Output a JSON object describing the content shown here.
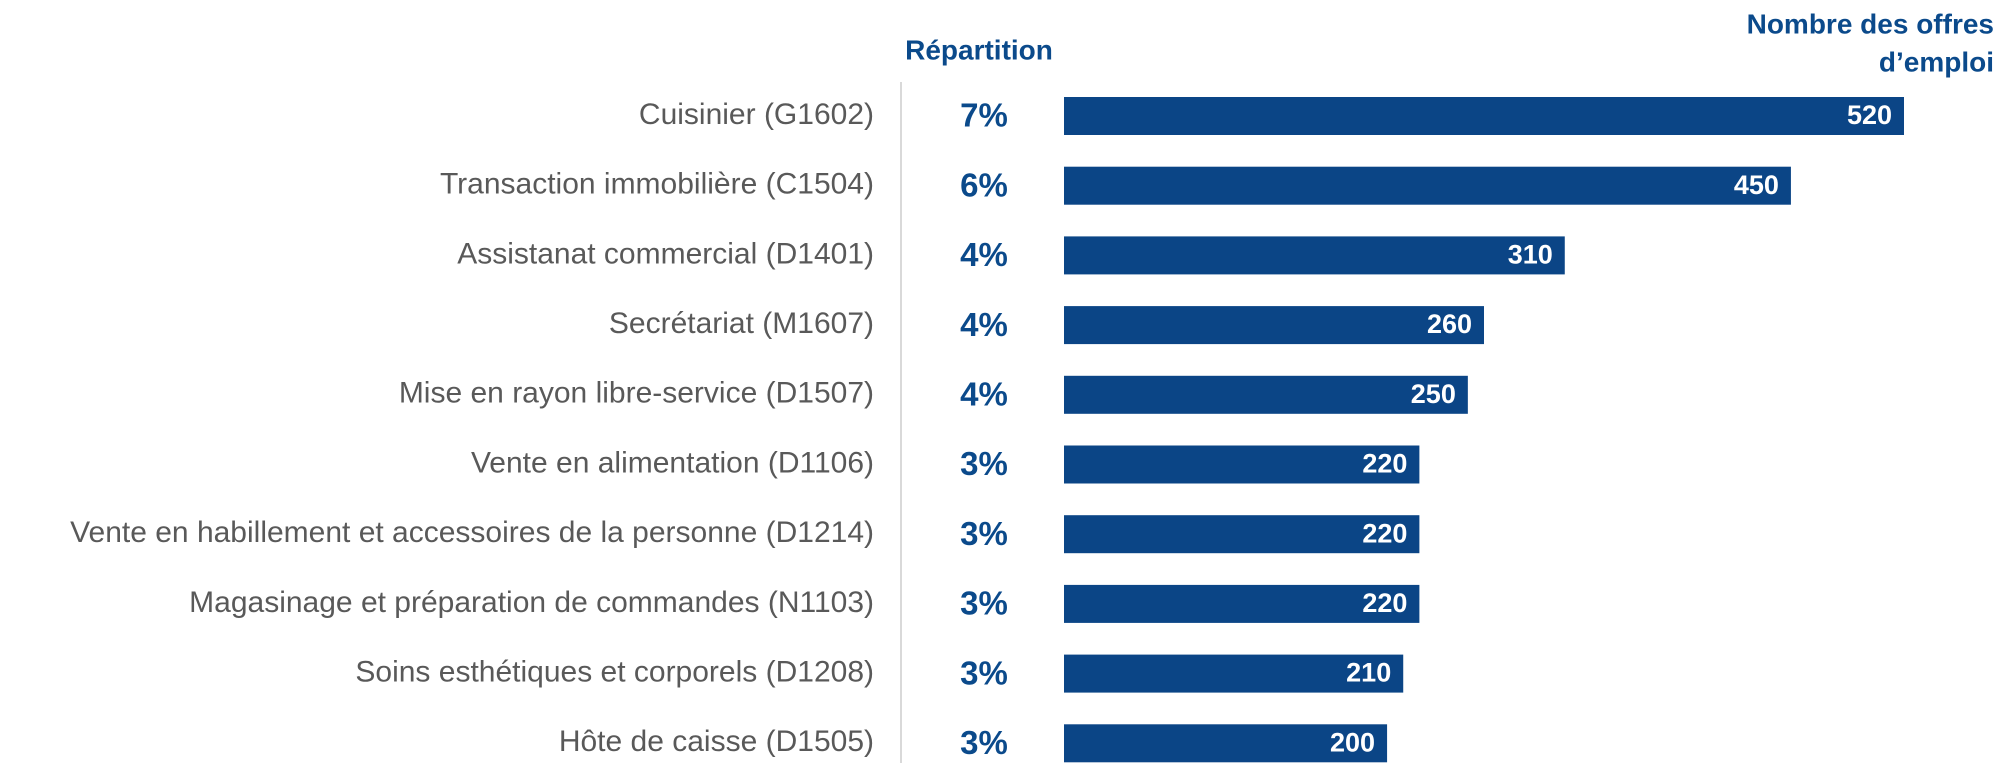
{
  "chart_data": {
    "type": "bar",
    "orientation": "horizontal",
    "share_header": "Répartition",
    "value_header": [
      "Nombre des offres",
      "d’emploi"
    ],
    "categories": [
      "Cuisinier (G1602)",
      "Transaction immobilière (C1504)",
      "Assistanat commercial (D1401)",
      "Secrétariat (M1607)",
      "Mise en rayon libre-service (D1507)",
      "Vente en alimentation (D1106)",
      "Vente en habillement et accessoires de la personne (D1214)",
      "Magasinage et préparation de commandes (N1103)",
      "Soins esthétiques et corporels (D1208)",
      "Hôte de caisse (D1505)"
    ],
    "shares": [
      "7%",
      "6%",
      "4%",
      "4%",
      "4%",
      "3%",
      "3%",
      "3%",
      "3%",
      "3%"
    ],
    "values": [
      520,
      450,
      310,
      260,
      250,
      220,
      220,
      220,
      210,
      200
    ],
    "color": "#0b4586"
  }
}
